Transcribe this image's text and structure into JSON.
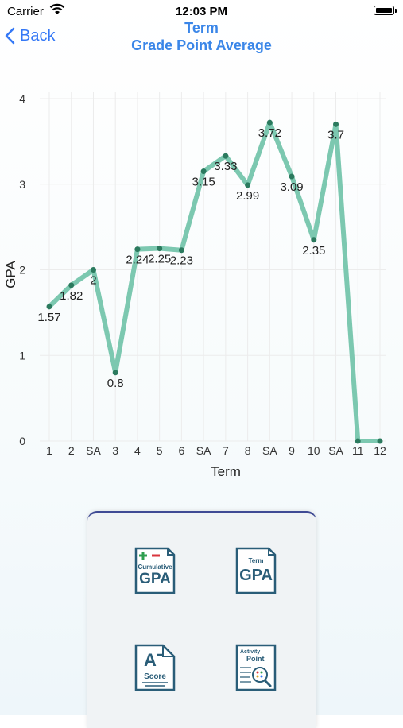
{
  "status_bar": {
    "carrier": "Carrier",
    "time": "12:03 PM"
  },
  "nav": {
    "back_label": "Back",
    "title_line1": "Term",
    "title_line2": "Grade Point Average"
  },
  "chart_data": {
    "type": "line",
    "categories": [
      "1",
      "2",
      "SA",
      "3",
      "4",
      "5",
      "6",
      "SA",
      "7",
      "8",
      "SA",
      "9",
      "10",
      "SA",
      "11",
      "12"
    ],
    "values": [
      1.57,
      1.82,
      2,
      0.8,
      2.24,
      2.25,
      2.23,
      3.15,
      3.33,
      2.99,
      3.72,
      3.09,
      2.35,
      3.7,
      0,
      0
    ],
    "data_labels": [
      "1.57",
      "1.82",
      "2",
      "0.8",
      "2.24",
      "2.25",
      "2.23",
      "3.15",
      "3.33",
      "2.99",
      "3.72",
      "3.09",
      "2.35",
      "3.7",
      "",
      ""
    ],
    "xlabel": "Term",
    "ylabel": "GPA",
    "ylim": [
      0,
      4
    ],
    "yticks": [
      "0",
      "1",
      "2",
      "3",
      "4"
    ],
    "grid": true,
    "line_color": "#7cc8b0",
    "marker_color": "#2b7a5e"
  },
  "panel": {
    "buttons": [
      {
        "name": "cumulative-gpa",
        "top_text": "Cumulative",
        "main_text": "GPA"
      },
      {
        "name": "term-gpa",
        "top_text": "Term",
        "main_text": "GPA"
      },
      {
        "name": "score",
        "top_text": "A",
        "main_text": "Score"
      },
      {
        "name": "activity-point",
        "top_text": "Activity",
        "main_text": "Point"
      }
    ]
  }
}
